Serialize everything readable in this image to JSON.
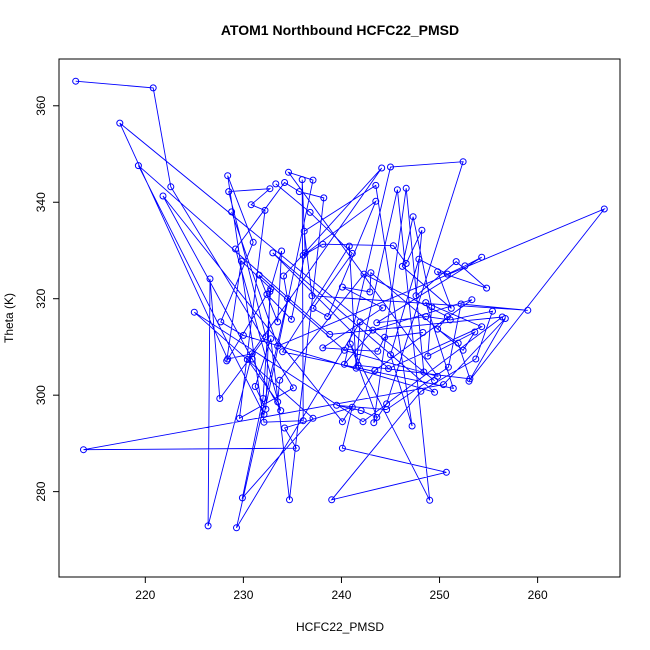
{
  "chart_data": {
    "type": "scatter",
    "title": "ATOM1 Northbound HCFC22_PMSD",
    "xlabel": "HCFC22_PMSD",
    "ylabel": "Theta (K)",
    "xlim": [
      211.2,
      268.4
    ],
    "ylim": [
      262.3,
      369.7
    ],
    "xticks": [
      220,
      230,
      240,
      250,
      260
    ],
    "yticks": [
      280,
      300,
      320,
      340,
      360
    ],
    "grid": false,
    "connect_points": true,
    "color": "#0000ff",
    "series": [
      {
        "points": [
          [
            212.9,
            365.1
          ],
          [
            220.8,
            363.7
          ],
          [
            222.6,
            343.2
          ],
          [
            235.1,
            301.5
          ],
          [
            229.6,
            295.2
          ],
          [
            232.2,
            338.3
          ],
          [
            230.8,
            339.5
          ],
          [
            232.7,
            342.8
          ],
          [
            228.5,
            342.2
          ],
          [
            232.3,
            312.1
          ],
          [
            227.6,
            299.3
          ],
          [
            226.6,
            324.1
          ],
          [
            226.4,
            272.9
          ],
          [
            230.9,
            308.6
          ],
          [
            228.4,
            307.5
          ],
          [
            217.4,
            356.4
          ],
          [
            249.5,
            303.0
          ],
          [
            248.4,
            304.8
          ],
          [
            246.6,
            342.9
          ],
          [
            243.3,
            294.3
          ],
          [
            244.6,
            298.2
          ],
          [
            252.4,
            348.4
          ],
          [
            245.0,
            347.3
          ],
          [
            240.3,
            306.4
          ],
          [
            243.2,
            313.5
          ],
          [
            253.3,
            319.8
          ],
          [
            243.4,
            305.1
          ],
          [
            240.1,
            294.5
          ],
          [
            221.8,
            341.3
          ],
          [
            230.9,
            307.5
          ],
          [
            233.8,
            296.8
          ],
          [
            229.2,
            330.3
          ],
          [
            234.2,
            344.1
          ],
          [
            235.7,
            342.2
          ],
          [
            238.2,
            340.9
          ],
          [
            234.7,
            278.3
          ],
          [
            232.8,
            311.7
          ],
          [
            231.2,
            301.8
          ],
          [
            232.3,
            297.1
          ],
          [
            232.7,
            321.5
          ],
          [
            233.9,
            329.9
          ],
          [
            233.5,
            315.2
          ],
          [
            231.6,
            324.9
          ],
          [
            240.3,
            309.3
          ],
          [
            249.8,
            303.9
          ],
          [
            234.6,
            346.2
          ],
          [
            237.1,
            344.6
          ],
          [
            232.1,
            296.0
          ],
          [
            219.3,
            347.6
          ],
          [
            238.8,
            312.6
          ],
          [
            256.4,
            316.2
          ],
          [
            242.2,
            294.5
          ],
          [
            225.0,
            317.2
          ],
          [
            237.1,
            295.2
          ],
          [
            229.9,
            278.7
          ],
          [
            232.0,
            299.3
          ],
          [
            232.8,
            322.1
          ],
          [
            229.8,
            327.8
          ],
          [
            228.3,
            307.1
          ],
          [
            232.4,
            320.9
          ],
          [
            234.9,
            315.7
          ],
          [
            236.3,
            329.5
          ],
          [
            236.0,
            344.7
          ],
          [
            236.1,
            294.7
          ],
          [
            232.1,
            294.4
          ],
          [
            228.4,
            345.5
          ],
          [
            231.0,
            331.7
          ],
          [
            227.7,
            315.2
          ],
          [
            230.0,
            312.4
          ],
          [
            249.5,
            300.6
          ],
          [
            233.0,
            329.5
          ],
          [
            244.8,
            305.5
          ],
          [
            254.3,
            314.2
          ],
          [
            248.6,
            319.2
          ],
          [
            251.4,
            301.4
          ],
          [
            234.0,
            309.0
          ],
          [
            240.8,
            330.9
          ],
          [
            241.5,
            305.6
          ],
          [
            241.9,
            315.2
          ],
          [
            229.3,
            272.5
          ],
          [
            234.5,
            320.0
          ],
          [
            234.1,
            324.7
          ],
          [
            244.1,
            347.1
          ],
          [
            230.4,
            307.4
          ],
          [
            233.5,
            298.6
          ],
          [
            233.7,
            303.1
          ],
          [
            242.3,
            325.1
          ],
          [
            250.8,
            316.3
          ],
          [
            249.8,
            313.7
          ],
          [
            251.9,
            310.8
          ],
          [
            253.1,
            303.4
          ],
          [
            241.7,
            306.2
          ],
          [
            245.7,
            342.6
          ],
          [
            249.0,
            278.2
          ],
          [
            240.9,
            310.6
          ],
          [
            243.6,
            295.4
          ],
          [
            242.0,
            296.8
          ],
          [
            239.5,
            297.9
          ],
          [
            244.6,
            297.0
          ],
          [
            250.9,
            305.8
          ],
          [
            252.2,
            318.9
          ],
          [
            259.0,
            317.6
          ],
          [
            237.0,
            320.6
          ],
          [
            236.2,
            334.0
          ],
          [
            243.5,
            343.5
          ],
          [
            247.2,
            293.6
          ],
          [
            245.0,
            308.4
          ],
          [
            247.9,
            328.2
          ],
          [
            250.8,
            325.1
          ],
          [
            252.6,
            326.8
          ],
          [
            254.3,
            328.6
          ],
          [
            243.6,
            315.0
          ],
          [
            248.6,
            316.3
          ],
          [
            251.1,
            315.6
          ],
          [
            255.4,
            317.4
          ],
          [
            253.7,
            307.5
          ],
          [
            248.1,
            300.8
          ],
          [
            239.0,
            278.3
          ],
          [
            250.7,
            284.0
          ],
          [
            240.1,
            289.0
          ],
          [
            241.1,
            297.5
          ],
          [
            234.2,
            293.2
          ],
          [
            235.4,
            289.0
          ],
          [
            213.7,
            288.7
          ],
          [
            250.4,
            302.2
          ],
          [
            256.7,
            315.9
          ],
          [
            253.0,
            302.9
          ],
          [
            266.8,
            338.6
          ],
          [
            233.5,
            310.2
          ],
          [
            228.8,
            338.0
          ]
        ]
      },
      {
        "points": [
          [
            233.3,
            343.8
          ],
          [
            236.8,
            337.9
          ],
          [
            241.1,
            329.4
          ],
          [
            237.1,
            318.0
          ],
          [
            238.6,
            316.3
          ],
          [
            243.5,
            340.2
          ],
          [
            236.1,
            329.0
          ],
          [
            238.1,
            331.3
          ],
          [
            245.3,
            331.0
          ],
          [
            246.6,
            327.3
          ],
          [
            248.2,
            334.2
          ],
          [
            247.6,
            320.6
          ],
          [
            251.7,
            327.7
          ],
          [
            254.8,
            322.2
          ],
          [
            249.8,
            325.6
          ],
          [
            251.2,
            318.0
          ],
          [
            246.2,
            326.7
          ],
          [
            247.3,
            337.0
          ],
          [
            249.2,
            318.3
          ],
          [
            248.8,
            308.1
          ],
          [
            253.6,
            313.1
          ],
          [
            252.4,
            309.3
          ],
          [
            243.0,
            325.4
          ],
          [
            242.9,
            321.4
          ],
          [
            240.1,
            322.4
          ],
          [
            244.2,
            318.1
          ],
          [
            238.1,
            309.8
          ],
          [
            243.7,
            309.1
          ],
          [
            244.4,
            312.0
          ],
          [
            248.3,
            313.0
          ]
        ]
      }
    ]
  }
}
